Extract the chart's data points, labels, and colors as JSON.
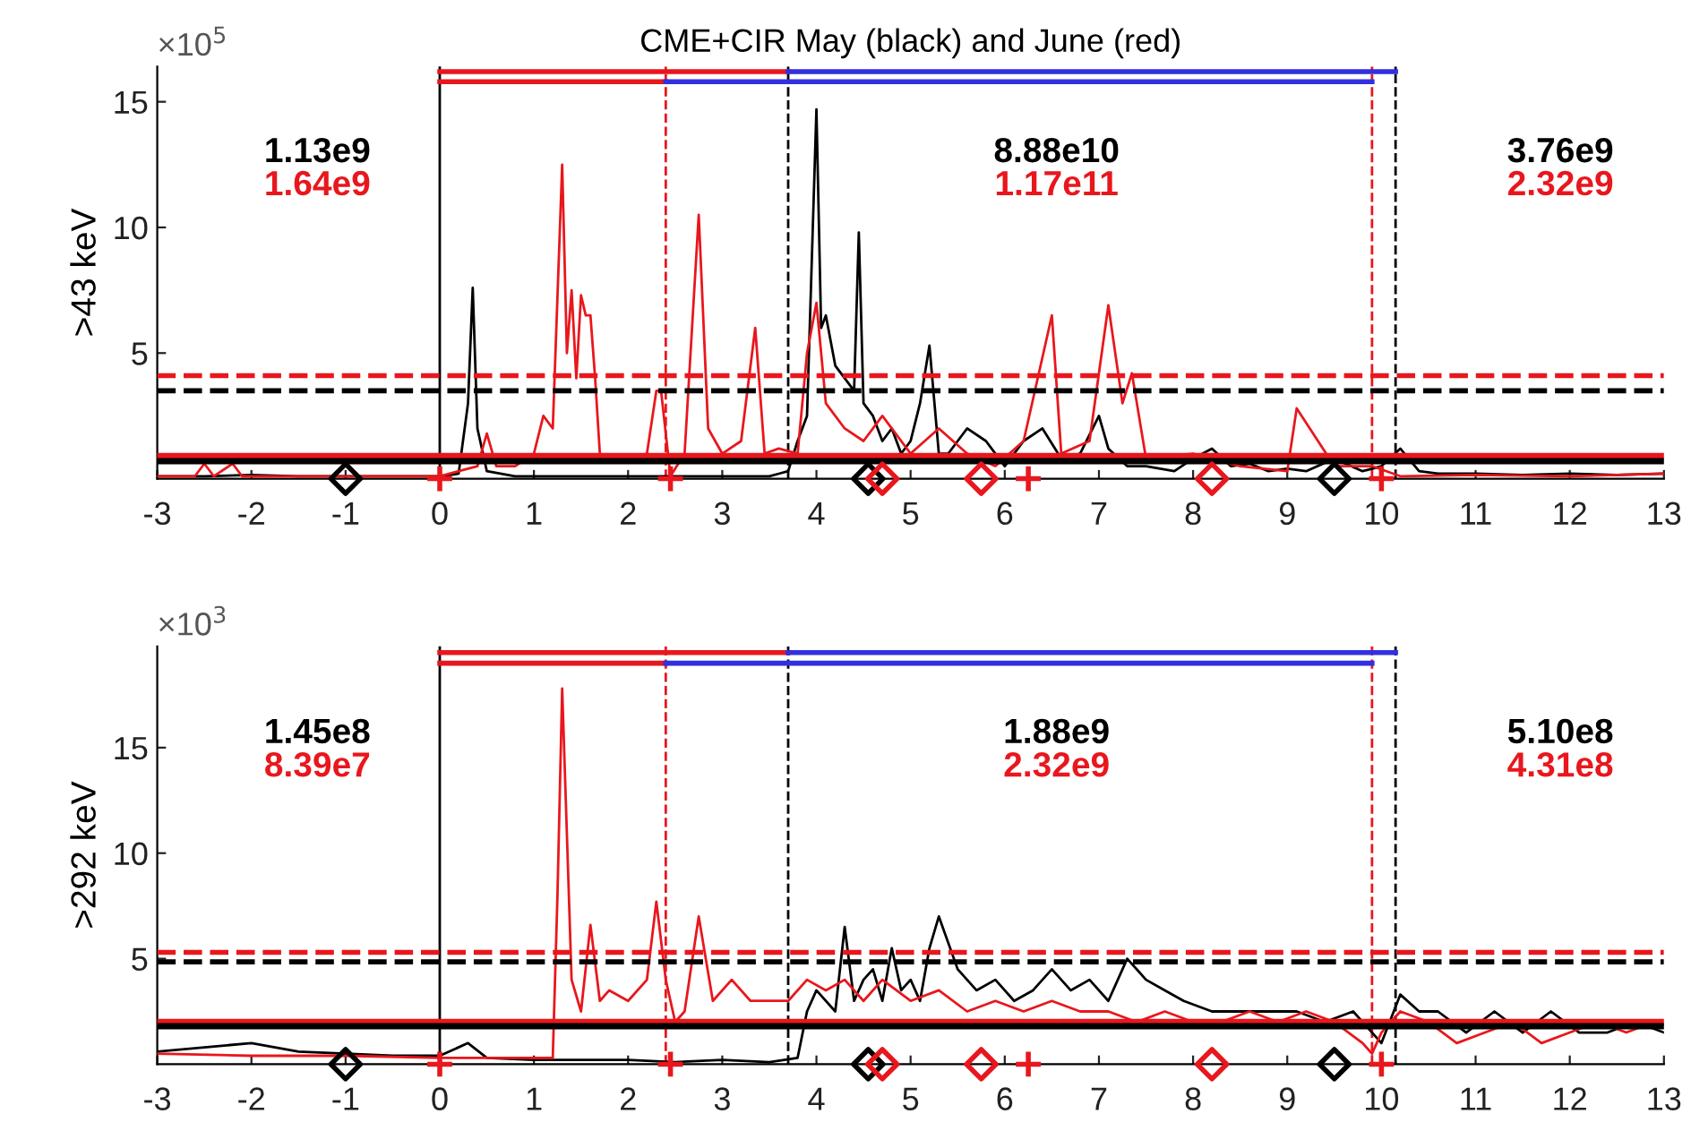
{
  "chart_data": [
    {
      "type": "line",
      "title": "CME+CIR May (black) and June (red)",
      "ylabel": ">43 keV",
      "xlim": [
        -3,
        13
      ],
      "xticks": [
        -3,
        -2,
        -1,
        0,
        1,
        2,
        3,
        4,
        5,
        6,
        7,
        8,
        9,
        10,
        11,
        12,
        13
      ],
      "ylim": [
        0,
        16.4
      ],
      "yticks": [
        5,
        10,
        15
      ],
      "grid": false,
      "legend": false,
      "annotations": [
        "×10$^{5}$",
        "1.13e9",
        "1.64e9",
        "8.88e10",
        "1.17e11",
        "3.76e9",
        "2.32e9"
      ],
      "series": [
        {
          "color": "#000000",
          "x": [
            -3,
            -2.5,
            -2,
            -1.5,
            -1,
            -0.5,
            0,
            0.2,
            0.3,
            0.35,
            0.4,
            0.5,
            0.8,
            1.2,
            1.6,
            2,
            2.5,
            3,
            3.5,
            3.6,
            3.7,
            3.8,
            3.9,
            4.0,
            4.05,
            4.1,
            4.2,
            4.3,
            4.4,
            4.45,
            4.5,
            4.6,
            4.7,
            4.8,
            4.9,
            5.0,
            5.1,
            5.2,
            5.3,
            5.4,
            5.6,
            5.8,
            6.0,
            6.2,
            6.4,
            6.6,
            6.8,
            7.0,
            7.1,
            7.3,
            7.5,
            7.8,
            8.0,
            8.2,
            8.4,
            8.6,
            8.8,
            9.0,
            9.2,
            9.5,
            9.8,
            10.0,
            10.2,
            10.4,
            10.6,
            11,
            11.5,
            12,
            12.5,
            13
          ],
          "values": [
            0.1,
            0.1,
            0.15,
            0.1,
            0.1,
            0.1,
            0.1,
            0.2,
            3,
            7.6,
            2,
            0.3,
            0.1,
            0.1,
            0.1,
            0.1,
            0.1,
            0.1,
            0.1,
            0.2,
            0.3,
            1.5,
            2.5,
            14.7,
            6,
            6.5,
            4.5,
            4,
            3.5,
            9.8,
            3,
            2.5,
            1.5,
            2,
            1,
            1.5,
            3,
            5.3,
            1,
            1,
            2,
            1.5,
            0.5,
            1.5,
            2,
            0.8,
            1.0,
            2.5,
            1.2,
            0.5,
            0.5,
            0.3,
            0.8,
            1.2,
            0.5,
            0.6,
            0.3,
            0.4,
            0.3,
            0.8,
            0.3,
            0.5,
            1.2,
            0.3,
            0.2,
            0.2,
            0.15,
            0.2,
            0.15,
            0.2
          ]
        },
        {
          "color": "#e8171d",
          "x": [
            -3,
            -2.6,
            -2.5,
            -2.4,
            -2.2,
            -2.1,
            -2,
            -1.5,
            -1,
            -0.5,
            0,
            0.2,
            0.4,
            0.5,
            0.6,
            0.8,
            1.0,
            1.1,
            1.2,
            1.3,
            1.35,
            1.4,
            1.45,
            1.5,
            1.55,
            1.6,
            1.65,
            1.7,
            1.8,
            2.0,
            2.2,
            2.3,
            2.35,
            2.45,
            2.6,
            2.75,
            2.85,
            3.0,
            3.2,
            3.35,
            3.45,
            3.6,
            3.8,
            3.9,
            4.0,
            4.1,
            4.3,
            4.5,
            4.7,
            5.0,
            5.3,
            5.6,
            5.9,
            6.2,
            6.5,
            6.6,
            6.9,
            7.1,
            7.25,
            7.35,
            7.5,
            8.0,
            8.5,
            9.0,
            9.1,
            9.5,
            9.9,
            10.2,
            11,
            12,
            13
          ],
          "values": [
            0.1,
            0.1,
            0.6,
            0.1,
            0.6,
            0.1,
            0.1,
            0.1,
            0.1,
            0.1,
            0.1,
            0.3,
            0.5,
            1.8,
            0.5,
            0.5,
            1,
            2.5,
            2,
            12.5,
            5,
            7.5,
            4,
            7.3,
            6.5,
            6.5,
            4,
            1,
            0.8,
            0.8,
            1,
            3.5,
            3.5,
            0.1,
            1,
            10.5,
            2,
            1,
            1.5,
            6,
            1,
            1.2,
            1,
            5,
            7,
            3,
            2,
            1.5,
            2.5,
            1,
            2,
            1,
            0.5,
            1.5,
            6.5,
            1,
            1.5,
            6.9,
            3,
            4.2,
            0.8,
            1,
            0.5,
            0.3,
            2.8,
            0.5,
            0.5,
            0.1,
            0.15,
            0.1,
            0.2
          ]
        },
        {
          "color": "#e8171d",
          "x": [
            0,
            3.7
          ],
          "values": [
            16.2,
            16.2
          ]
        },
        {
          "color": "#3030e0",
          "x": [
            3.7,
            10.15
          ],
          "values": [
            16.2,
            16.2
          ]
        },
        {
          "color": "#e8171d",
          "x": [
            0,
            2.4
          ],
          "values": [
            15.8,
            15.8
          ]
        },
        {
          "color": "#3030e0",
          "x": [
            2.4,
            9.9
          ],
          "values": [
            15.8,
            15.8
          ]
        },
        {
          "type": "scatter",
          "marker": "diamond",
          "color": "#000000",
          "x": [
            -1,
            4.55,
            9.5
          ],
          "values": [
            0,
            0,
            0
          ]
        },
        {
          "type": "scatter",
          "marker": "diamond",
          "color": "#e8171d",
          "x": [
            4.7,
            5.75,
            8.2
          ],
          "values": [
            0,
            0,
            0
          ]
        },
        {
          "type": "scatter",
          "marker": "cross",
          "color": "#e8171d",
          "x": [
            0,
            2.45,
            6.25,
            10.0
          ],
          "values": [
            0,
            0,
            0,
            0
          ]
        }
      ],
      "ref_lines": [
        {
          "axis": "y",
          "value": 4.1,
          "color": "#e8171d",
          "line_style": "dashed"
        },
        {
          "axis": "y",
          "value": 3.5,
          "color": "#000000",
          "line_style": "dashed"
        },
        {
          "axis": "y",
          "value": 0.9,
          "color": "#e8171d",
          "line_style": "solid"
        },
        {
          "axis": "y",
          "value": 0.7,
          "color": "#000000",
          "line_style": "solid"
        },
        {
          "axis": "x",
          "value": 0,
          "color": "#000000",
          "line_style": "solid"
        },
        {
          "axis": "x",
          "value": 2.4,
          "color": "#e8171d",
          "line_style": "dashed"
        },
        {
          "axis": "x",
          "value": 3.7,
          "color": "#000000",
          "line_style": "dashed"
        },
        {
          "axis": "x",
          "value": 9.9,
          "color": "#e8171d",
          "line_style": "dashed"
        },
        {
          "axis": "x",
          "value": 10.15,
          "color": "#000000",
          "line_style": "dashed"
        }
      ]
    },
    {
      "type": "line",
      "ylabel": ">292 keV",
      "xlim": [
        -3,
        13
      ],
      "xticks": [
        -3,
        -2,
        -1,
        0,
        1,
        2,
        3,
        4,
        5,
        6,
        7,
        8,
        9,
        10,
        11,
        12,
        13
      ],
      "ylim": [
        0,
        19.8
      ],
      "yticks": [
        5,
        10,
        15
      ],
      "grid": false,
      "legend": false,
      "annotations": [
        "×10$^{3}$",
        "1.45e8",
        "8.39e7",
        "1.88e9",
        "2.32e9",
        "5.10e8",
        "4.31e8"
      ],
      "series": [
        {
          "color": "#000000",
          "x": [
            -3,
            -2.5,
            -2,
            -1.5,
            -1,
            -0.5,
            0,
            0.3,
            0.5,
            1,
            1.5,
            2,
            2.5,
            3,
            3.5,
            3.8,
            3.9,
            4.0,
            4.2,
            4.3,
            4.4,
            4.5,
            4.6,
            4.7,
            4.8,
            4.9,
            5.0,
            5.1,
            5.2,
            5.3,
            5.5,
            5.7,
            5.9,
            6.1,
            6.3,
            6.5,
            6.7,
            6.9,
            7.1,
            7.3,
            7.5,
            7.7,
            7.9,
            8.2,
            8.5,
            8.8,
            9.1,
            9.4,
            9.7,
            10.0,
            10.2,
            10.4,
            10.6,
            10.9,
            11.2,
            11.5,
            11.8,
            12.1,
            12.4,
            12.7,
            13
          ],
          "values": [
            0.6,
            0.8,
            1.0,
            0.6,
            0.5,
            0.4,
            0.4,
            1.0,
            0.3,
            0.2,
            0.2,
            0.2,
            0.1,
            0.2,
            0.1,
            0.3,
            2.5,
            3.5,
            2.5,
            6.5,
            3,
            4,
            4.5,
            3,
            5.5,
            3.5,
            4,
            3,
            5.5,
            7,
            4.5,
            3.5,
            4,
            3,
            3.5,
            4.5,
            3.5,
            4,
            3,
            5,
            4,
            3.5,
            3,
            2.5,
            2.5,
            2.5,
            2.5,
            2,
            2.5,
            1,
            3.3,
            2.5,
            2.5,
            1.5,
            2.5,
            1.5,
            2.5,
            1.5,
            1.5,
            2,
            1.5
          ]
        },
        {
          "color": "#e8171d",
          "x": [
            -3,
            -2,
            -1,
            0,
            1,
            1.2,
            1.25,
            1.3,
            1.4,
            1.5,
            1.6,
            1.7,
            1.8,
            2.0,
            2.2,
            2.3,
            2.4,
            2.5,
            2.6,
            2.75,
            2.9,
            3.1,
            3.3,
            3.5,
            3.7,
            3.9,
            4.1,
            4.3,
            4.5,
            4.7,
            5.0,
            5.3,
            5.6,
            5.9,
            6.2,
            6.5,
            6.8,
            7.1,
            7.4,
            7.7,
            8.0,
            8.3,
            8.6,
            8.9,
            9.2,
            9.5,
            9.8,
            9.9,
            10.0,
            10.2,
            10.5,
            10.8,
            11.1,
            11.4,
            11.7,
            12.0,
            12.3,
            12.6,
            12.9
          ],
          "values": [
            0.5,
            0.4,
            0.4,
            0.3,
            0.3,
            0.3,
            8,
            17.8,
            4,
            2.5,
            6.6,
            3,
            3.5,
            3,
            4,
            7.7,
            4,
            2,
            2.5,
            7,
            3,
            4,
            3,
            3,
            3,
            4,
            3.5,
            4,
            3,
            4,
            3,
            3.5,
            2.5,
            3,
            2.5,
            3,
            2.5,
            2.5,
            2,
            2.5,
            2,
            2,
            2.5,
            2,
            2.5,
            2,
            1,
            0.5,
            1.5,
            2.5,
            2,
            1,
            1.5,
            2,
            1,
            1.5,
            2,
            1.5,
            2
          ]
        },
        {
          "color": "#e8171d",
          "x": [
            0,
            3.7
          ],
          "values": [
            19.5,
            19.5
          ]
        },
        {
          "color": "#3030e0",
          "x": [
            3.7,
            10.15
          ],
          "values": [
            19.5,
            19.5
          ]
        },
        {
          "color": "#e8171d",
          "x": [
            0,
            2.4
          ],
          "values": [
            19.0,
            19.0
          ]
        },
        {
          "color": "#3030e0",
          "x": [
            2.4,
            9.9
          ],
          "values": [
            19.0,
            19.0
          ]
        },
        {
          "type": "scatter",
          "marker": "diamond",
          "color": "#000000",
          "x": [
            -1,
            4.55,
            9.5
          ],
          "values": [
            0,
            0,
            0
          ]
        },
        {
          "type": "scatter",
          "marker": "diamond",
          "color": "#e8171d",
          "x": [
            4.7,
            5.75,
            8.2
          ],
          "values": [
            0,
            0,
            0
          ]
        },
        {
          "type": "scatter",
          "marker": "cross",
          "color": "#e8171d",
          "x": [
            0,
            2.45,
            6.25,
            10.0
          ],
          "values": [
            0,
            0,
            0,
            0
          ]
        }
      ],
      "ref_lines": [
        {
          "axis": "y",
          "value": 5.3,
          "color": "#e8171d",
          "line_style": "dashed"
        },
        {
          "axis": "y",
          "value": 4.85,
          "color": "#000000",
          "line_style": "dashed"
        },
        {
          "axis": "y",
          "value": 2.0,
          "color": "#e8171d",
          "line_style": "solid"
        },
        {
          "axis": "y",
          "value": 1.8,
          "color": "#000000",
          "line_style": "solid"
        },
        {
          "axis": "x",
          "value": 0,
          "color": "#000000",
          "line_style": "solid"
        },
        {
          "axis": "x",
          "value": 2.4,
          "color": "#e8171d",
          "line_style": "dashed"
        },
        {
          "axis": "x",
          "value": 3.7,
          "color": "#000000",
          "line_style": "dashed"
        },
        {
          "axis": "x",
          "value": 9.9,
          "color": "#e8171d",
          "line_style": "dashed"
        },
        {
          "axis": "x",
          "value": 10.15,
          "color": "#000000",
          "line_style": "dashed"
        }
      ]
    }
  ]
}
